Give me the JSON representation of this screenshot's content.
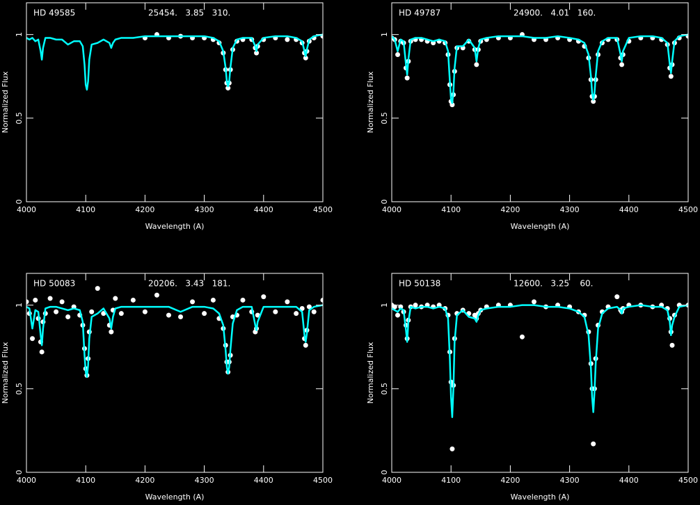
{
  "chart_data": [
    {
      "type": "line",
      "title": "HD 49585",
      "annotation": "25454.   3.85   310.",
      "xlabel": "Wavelength (A)",
      "ylabel": "Normalized Flux",
      "xlim": [
        4000,
        4500
      ],
      "ylim": [
        0,
        1.19
      ],
      "xticks": [
        4000,
        4100,
        4200,
        4300,
        4400,
        4500
      ],
      "yticks": [
        0,
        0.5,
        1
      ],
      "x": [
        4000,
        4005,
        4010,
        4015,
        4020,
        4024,
        4026,
        4028,
        4032,
        4040,
        4050,
        4060,
        4070,
        4080,
        4090,
        4095,
        4098,
        4100,
        4102,
        4104,
        4106,
        4110,
        4120,
        4130,
        4140,
        4143,
        4146,
        4150,
        4160,
        4180,
        4200,
        4220,
        4240,
        4260,
        4280,
        4300,
        4315,
        4325,
        4332,
        4336,
        4338,
        4340,
        4342,
        4344,
        4348,
        4355,
        4365,
        4380,
        4386,
        4388,
        4390,
        4400,
        4420,
        4440,
        4455,
        4465,
        4469,
        4471,
        4473,
        4477,
        4485,
        4500
      ],
      "series": [
        {
          "style": "points",
          "color": "#ffffff",
          "values": [
            null,
            null,
            null,
            null,
            null,
            null,
            null,
            null,
            null,
            null,
            null,
            null,
            null,
            null,
            null,
            null,
            null,
            null,
            null,
            null,
            null,
            null,
            null,
            null,
            null,
            null,
            null,
            null,
            null,
            null,
            0.98,
            1.0,
            0.98,
            0.99,
            0.98,
            0.98,
            0.97,
            0.95,
            0.89,
            0.79,
            0.71,
            0.68,
            0.71,
            0.79,
            0.91,
            0.96,
            0.97,
            0.97,
            0.92,
            0.89,
            0.93,
            0.97,
            0.98,
            0.97,
            0.97,
            0.95,
            0.89,
            0.86,
            0.9,
            0.96,
            0.98,
            0.99
          ]
        },
        {
          "style": "line",
          "color": "#00ffff",
          "values": [
            0.98,
            0.97,
            0.98,
            0.96,
            0.97,
            0.9,
            0.85,
            0.92,
            0.98,
            0.98,
            0.97,
            0.97,
            0.94,
            0.96,
            0.96,
            0.93,
            0.82,
            0.7,
            0.67,
            0.72,
            0.85,
            0.94,
            0.95,
            0.97,
            0.95,
            0.92,
            0.95,
            0.97,
            0.98,
            0.98,
            0.99,
            0.99,
            0.99,
            0.99,
            0.99,
            0.99,
            0.98,
            0.96,
            0.9,
            0.8,
            0.72,
            0.69,
            0.72,
            0.8,
            0.92,
            0.97,
            0.98,
            0.98,
            0.93,
            0.9,
            0.94,
            0.98,
            0.99,
            0.99,
            0.98,
            0.96,
            0.9,
            0.87,
            0.91,
            0.97,
            0.99,
            1.0
          ]
        }
      ]
    },
    {
      "type": "line",
      "title": "HD 49787",
      "annotation": "24900.   4.01   160.",
      "xlabel": "Wavelength (A)",
      "ylabel": "Normalized Flux",
      "xlim": [
        4000,
        4500
      ],
      "ylim": [
        0,
        1.19
      ],
      "xticks": [
        4000,
        4100,
        4200,
        4300,
        4400,
        4500
      ],
      "yticks": [
        0,
        0.5,
        1
      ],
      "x": [
        4000,
        4005,
        4010,
        4015,
        4020,
        4024,
        4026,
        4028,
        4032,
        4040,
        4050,
        4060,
        4070,
        4080,
        4090,
        4095,
        4098,
        4100,
        4102,
        4104,
        4106,
        4110,
        4120,
        4130,
        4140,
        4143,
        4146,
        4150,
        4160,
        4180,
        4200,
        4220,
        4240,
        4260,
        4280,
        4300,
        4315,
        4325,
        4332,
        4336,
        4338,
        4340,
        4342,
        4344,
        4348,
        4355,
        4365,
        4380,
        4386,
        4388,
        4390,
        4400,
        4420,
        4440,
        4455,
        4465,
        4469,
        4471,
        4473,
        4477,
        4485,
        4500
      ],
      "series": [
        {
          "style": "points",
          "color": "#ffffff",
          "values": [
            0.98,
            0.97,
            0.88,
            0.96,
            0.95,
            0.8,
            0.74,
            0.84,
            0.96,
            0.97,
            0.97,
            0.96,
            0.95,
            0.96,
            0.95,
            0.88,
            0.7,
            0.6,
            0.58,
            0.64,
            0.78,
            0.92,
            0.92,
            0.96,
            0.91,
            0.82,
            0.91,
            0.96,
            0.97,
            0.98,
            0.98,
            1.0,
            0.97,
            0.97,
            0.98,
            0.97,
            0.96,
            0.93,
            0.86,
            0.73,
            0.63,
            0.6,
            0.63,
            0.73,
            0.88,
            0.95,
            0.97,
            0.97,
            0.86,
            0.82,
            0.88,
            0.96,
            0.98,
            0.98,
            0.97,
            0.94,
            0.8,
            0.75,
            0.82,
            0.95,
            0.98,
            0.99
          ]
        },
        {
          "style": "line",
          "color": "#00ffff",
          "values": [
            0.99,
            0.97,
            0.9,
            0.97,
            0.96,
            0.82,
            0.76,
            0.85,
            0.97,
            0.98,
            0.98,
            0.97,
            0.96,
            0.97,
            0.96,
            0.9,
            0.72,
            0.61,
            0.59,
            0.66,
            0.8,
            0.93,
            0.93,
            0.97,
            0.92,
            0.84,
            0.92,
            0.97,
            0.98,
            0.99,
            0.99,
            0.99,
            0.98,
            0.98,
            0.99,
            0.98,
            0.97,
            0.95,
            0.88,
            0.75,
            0.65,
            0.61,
            0.65,
            0.75,
            0.9,
            0.96,
            0.98,
            0.98,
            0.88,
            0.84,
            0.9,
            0.98,
            0.99,
            0.99,
            0.98,
            0.95,
            0.82,
            0.77,
            0.84,
            0.96,
            0.99,
            1.0
          ]
        }
      ]
    },
    {
      "type": "line",
      "title": "HD 50083",
      "annotation": "20206.   3.43   181.",
      "xlabel": "Wavelength (A)",
      "ylabel": "Normalized Flux",
      "xlim": [
        4000,
        4500
      ],
      "ylim": [
        0,
        1.19
      ],
      "xticks": [
        4000,
        4100,
        4200,
        4300,
        4400,
        4500
      ],
      "yticks": [
        0,
        0.5,
        1
      ],
      "x": [
        4000,
        4005,
        4010,
        4015,
        4020,
        4024,
        4026,
        4028,
        4032,
        4040,
        4050,
        4060,
        4070,
        4080,
        4090,
        4095,
        4098,
        4100,
        4102,
        4104,
        4106,
        4110,
        4120,
        4130,
        4140,
        4143,
        4146,
        4150,
        4160,
        4180,
        4200,
        4220,
        4240,
        4260,
        4280,
        4300,
        4315,
        4325,
        4332,
        4336,
        4338,
        4340,
        4342,
        4344,
        4348,
        4355,
        4365,
        4380,
        4386,
        4388,
        4390,
        4400,
        4420,
        4440,
        4455,
        4465,
        4469,
        4471,
        4473,
        4477,
        4485,
        4500
      ],
      "series": [
        {
          "style": "points",
          "color": "#ffffff",
          "values": [
            1.02,
            0.95,
            0.8,
            1.03,
            0.92,
            0.78,
            0.72,
            0.9,
            0.95,
            1.04,
            0.96,
            1.02,
            0.93,
            0.99,
            0.94,
            0.88,
            0.74,
            0.62,
            0.58,
            0.68,
            0.84,
            0.96,
            1.1,
            0.95,
            0.88,
            0.84,
            0.97,
            1.04,
            0.95,
            1.03,
            0.96,
            1.06,
            0.94,
            0.93,
            1.02,
            0.95,
            1.03,
            0.92,
            0.86,
            0.76,
            0.66,
            0.6,
            0.66,
            0.7,
            0.93,
            0.94,
            1.03,
            0.96,
            0.84,
            0.86,
            0.94,
            1.05,
            0.96,
            1.02,
            0.95,
            0.98,
            0.8,
            0.76,
            0.85,
            0.99,
            0.96,
            1.03
          ]
        },
        {
          "style": "line",
          "color": "#00ffff",
          "values": [
            0.99,
            0.98,
            0.86,
            0.97,
            0.96,
            0.82,
            0.76,
            0.86,
            0.98,
            0.99,
            0.99,
            0.98,
            0.97,
            0.98,
            0.97,
            0.9,
            0.7,
            0.6,
            0.57,
            0.64,
            0.8,
            0.93,
            0.95,
            0.98,
            0.92,
            0.86,
            0.93,
            0.98,
            0.99,
            0.99,
            0.99,
            0.99,
            0.99,
            0.96,
            0.99,
            0.99,
            0.98,
            0.95,
            0.88,
            0.73,
            0.63,
            0.59,
            0.63,
            0.73,
            0.89,
            0.97,
            0.99,
            0.99,
            0.88,
            0.85,
            0.9,
            0.99,
            0.99,
            0.99,
            0.99,
            0.96,
            0.82,
            0.78,
            0.83,
            0.97,
            0.99,
            1.0
          ]
        }
      ]
    },
    {
      "type": "line",
      "title": "HD 50138",
      "annotation": "12600.   3.25    60.",
      "xlabel": "Wavelength (A)",
      "ylabel": "Normalized Flux",
      "xlim": [
        4000,
        4500
      ],
      "ylim": [
        0,
        1.19
      ],
      "xticks": [
        4000,
        4100,
        4200,
        4300,
        4400,
        4500
      ],
      "yticks": [
        0,
        0.5,
        1
      ],
      "x": [
        4000,
        4005,
        4010,
        4015,
        4020,
        4024,
        4026,
        4028,
        4032,
        4040,
        4050,
        4060,
        4070,
        4080,
        4090,
        4095,
        4098,
        4100,
        4102,
        4104,
        4106,
        4110,
        4120,
        4130,
        4140,
        4143,
        4146,
        4150,
        4160,
        4180,
        4200,
        4220,
        4240,
        4260,
        4280,
        4300,
        4315,
        4325,
        4332,
        4336,
        4338,
        4340,
        4342,
        4344,
        4348,
        4355,
        4365,
        4380,
        4386,
        4388,
        4390,
        4400,
        4420,
        4440,
        4455,
        4465,
        4469,
        4471,
        4473,
        4477,
        4485,
        4500
      ],
      "series": [
        {
          "style": "points",
          "color": "#ffffff",
          "values": [
            1.0,
            0.99,
            0.94,
            0.99,
            0.96,
            0.88,
            0.8,
            0.91,
            0.99,
            1.0,
            0.99,
            1.0,
            0.99,
            1.0,
            0.98,
            0.94,
            0.72,
            0.54,
            0.14,
            0.52,
            0.8,
            0.95,
            0.97,
            0.95,
            0.94,
            0.92,
            0.95,
            0.97,
            0.99,
            1.0,
            1.0,
            0.81,
            1.02,
            0.99,
            1.0,
            0.99,
            0.96,
            0.94,
            0.84,
            0.65,
            0.5,
            0.17,
            0.5,
            0.68,
            0.88,
            0.96,
            0.99,
            1.05,
            0.97,
            0.96,
            0.98,
            1.0,
            1.0,
            0.99,
            1.0,
            0.98,
            0.92,
            0.84,
            0.76,
            0.94,
            1.0,
            1.0
          ]
        },
        {
          "style": "line",
          "color": "#00ffff",
          "values": [
            0.98,
            0.97,
            0.96,
            0.98,
            0.97,
            0.85,
            0.78,
            0.9,
            0.99,
            0.98,
            0.99,
            0.99,
            0.98,
            0.99,
            0.98,
            0.92,
            0.68,
            0.45,
            0.33,
            0.5,
            0.78,
            0.94,
            0.97,
            0.93,
            0.92,
            0.9,
            0.94,
            0.97,
            0.98,
            0.99,
            0.99,
            1.0,
            1.0,
            0.99,
            0.99,
            0.98,
            0.96,
            0.93,
            0.82,
            0.62,
            0.45,
            0.36,
            0.48,
            0.65,
            0.86,
            0.95,
            0.98,
            0.99,
            0.97,
            0.95,
            0.98,
            0.99,
            1.0,
            0.99,
            0.99,
            0.97,
            0.9,
            0.82,
            0.88,
            0.93,
            0.99,
            1.0
          ]
        }
      ]
    }
  ]
}
